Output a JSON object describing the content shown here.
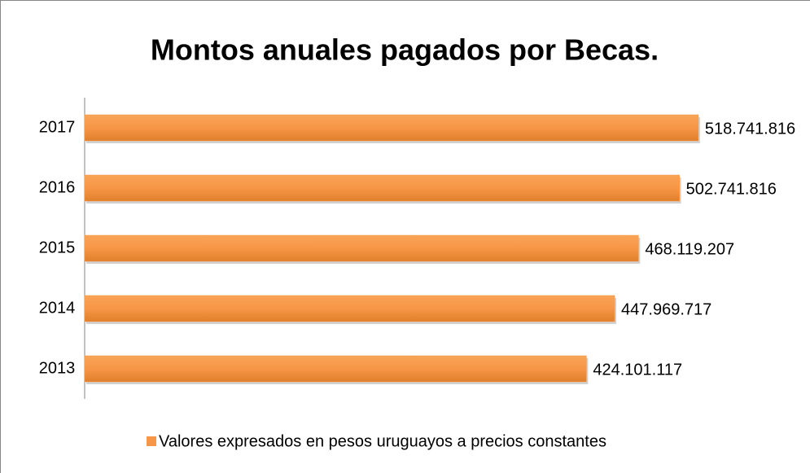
{
  "chart_data": {
    "type": "bar",
    "orientation": "horizontal",
    "title": "Montos anuales pagados por Becas.",
    "categories": [
      "2013",
      "2014",
      "2015",
      "2016",
      "2017"
    ],
    "series": [
      {
        "name": "Valores expresados en pesos uruguayos a precios constantes",
        "color": "#f79646",
        "values": [
          424101117,
          447969717,
          468119207,
          502741816,
          518741816
        ],
        "value_labels": [
          "424.101.117",
          "447.969.717",
          "468.119.207",
          "502.741.816",
          "518.741.816"
        ]
      }
    ],
    "xlim": [
      0,
      600000000
    ],
    "legend": "bottom"
  }
}
